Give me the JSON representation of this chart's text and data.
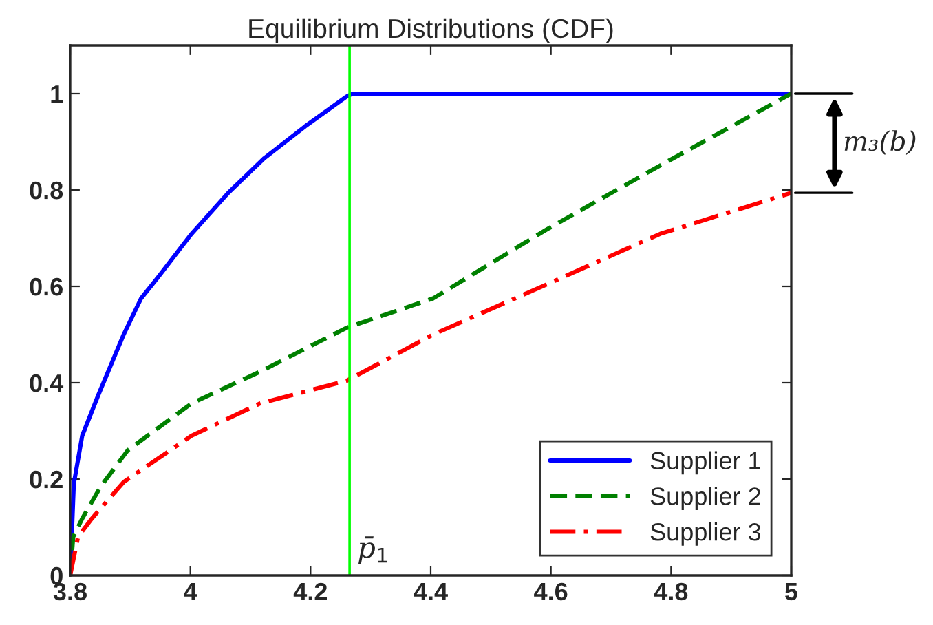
{
  "chart_data": {
    "type": "line",
    "title": "Equilibrium Distributions (CDF)",
    "series": [
      {
        "name": "Supplier 1",
        "color": "#0000ff",
        "line_style": "solid",
        "x": [
          3.8,
          3.806,
          3.82,
          3.847,
          3.889,
          3.918,
          3.945,
          4.002,
          4.063,
          4.123,
          4.191,
          4.26,
          4.27,
          5.0
        ],
        "values": [
          0,
          0.19,
          0.29,
          0.375,
          0.5,
          0.575,
          0.617,
          0.709,
          0.794,
          0.866,
          0.932,
          0.994,
          1.0,
          1.0
        ]
      },
      {
        "name": "Supplier 2",
        "color": "#008000",
        "line_style": "dashed",
        "x": [
          3.8,
          3.805,
          3.82,
          3.851,
          3.896,
          4.002,
          4.116,
          4.26,
          4.404,
          4.593,
          4.782,
          5.0
        ],
        "values": [
          0,
          0.08,
          0.118,
          0.185,
          0.26,
          0.357,
          0.423,
          0.514,
          0.575,
          0.718,
          0.851,
          1.0
        ]
      },
      {
        "name": "Supplier 3",
        "color": "#ff0000",
        "line_style": "dashdot",
        "x": [
          3.8,
          3.813,
          3.836,
          3.889,
          4.002,
          4.116,
          4.26,
          4.404,
          4.593,
          4.782,
          5.0
        ],
        "values": [
          0,
          0.08,
          0.118,
          0.194,
          0.29,
          0.357,
          0.404,
          0.5,
          0.604,
          0.709,
          0.794
        ]
      }
    ],
    "xlim": [
      3.8,
      5
    ],
    "xticks": [
      3.8,
      4,
      4.2,
      4.4,
      4.6,
      4.8,
      5
    ],
    "ylim": [
      0,
      1.1
    ],
    "yticks": [
      0,
      0.2,
      0.4,
      0.6,
      0.8,
      1
    ],
    "ref_lines": [
      {
        "axis": "x",
        "value": 4.265,
        "label": "p̄$_{1}$",
        "color": "#00ff00",
        "line_style": "solid"
      }
    ],
    "annotations": [
      "m₃(b)"
    ],
    "legend": "bottom right",
    "grid": false
  }
}
